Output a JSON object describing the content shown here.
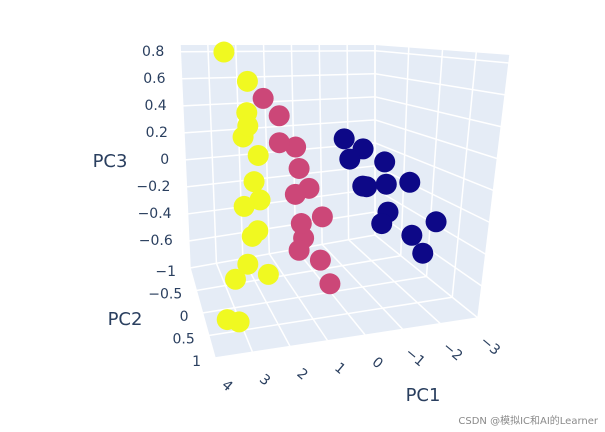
{
  "chart_data": {
    "type": "scatter3d",
    "xlabel": "PC1",
    "ylabel": "PC2",
    "zlabel": "PC3",
    "xlim": [
      -3,
      4
    ],
    "ylim": [
      -1,
      1
    ],
    "zlim": [
      -0.8,
      0.85
    ],
    "xticks": [
      4,
      3,
      2,
      1,
      0,
      {
        "value": -1,
        "label": "−1"
      },
      {
        "value": -2,
        "label": "−2"
      },
      {
        "value": -3,
        "label": "−3"
      }
    ],
    "yticks": [
      {
        "value": -1,
        "label": "−1"
      },
      {
        "value": -0.5,
        "label": "−0.5"
      },
      0,
      0.5,
      1
    ],
    "zticks": [
      {
        "value": -0.6,
        "label": "−0.6"
      },
      {
        "value": -0.4,
        "label": "−0.4"
      },
      {
        "value": -0.2,
        "label": "−0.2"
      },
      0,
      0.2,
      0.4,
      0.6,
      0.8
    ],
    "series": [
      {
        "color": "#0d0887",
        "x": [
          -1.5,
          -1.8,
          -1.2,
          -2.0,
          -1.6,
          -1.4,
          -2.3,
          -1.1,
          -1.7,
          -2.5,
          -0.9,
          -1.9,
          -1.3
        ],
        "y": [
          -0.8,
          -0.6,
          -0.5,
          -0.3,
          0,
          0.2,
          0,
          0.3,
          0.5,
          0.4,
          0,
          0.6,
          -0.2
        ],
        "z": [
          0.1,
          0.05,
          0.0,
          0.0,
          -0.1,
          -0.25,
          -0.1,
          -0.3,
          -0.35,
          -0.3,
          -0.1,
          -0.45,
          -0.15
        ]
      },
      {
        "color": "#cc4778",
        "x": [
          1.3,
          1.1,
          0.8,
          1.0,
          0.9,
          1.2,
          0.7,
          1.3,
          1.0,
          1.5,
          0.9,
          1.2,
          1.4
        ],
        "y": [
          -0.8,
          -0.5,
          -0.3,
          0,
          0.2,
          0.1,
          0.4,
          0.5,
          0.7,
          0.6,
          0.9,
          0.3,
          -0.2
        ],
        "z": [
          0.45,
          0.35,
          0.15,
          0.05,
          -0.05,
          -0.1,
          -0.2,
          -0.3,
          -0.4,
          -0.35,
          -0.5,
          -0.25,
          0.2
        ]
      },
      {
        "color": "#f0f921",
        "x": [
          2.6,
          2.1,
          2.3,
          2.5,
          2.2,
          2.4,
          2.3,
          2.7,
          2.5,
          2.9,
          2.4,
          3.2,
          3.5,
          3.3,
          2.2,
          2.6
        ],
        "y": [
          -0.8,
          -0.5,
          -0.3,
          -0.2,
          0,
          0.1,
          0.2,
          0.1,
          0.4,
          0.6,
          0.7,
          0.5,
          0.6,
          0.9,
          -0.4,
          0.3
        ],
        "z": [
          0.8,
          0.6,
          0.4,
          0.25,
          0.15,
          0,
          -0.1,
          -0.15,
          -0.25,
          -0.4,
          -0.45,
          -0.5,
          -0.7,
          -0.65,
          0.3,
          -0.3
        ]
      }
    ],
    "watermark": "CSDN @模拟IC和AI的Learner"
  }
}
